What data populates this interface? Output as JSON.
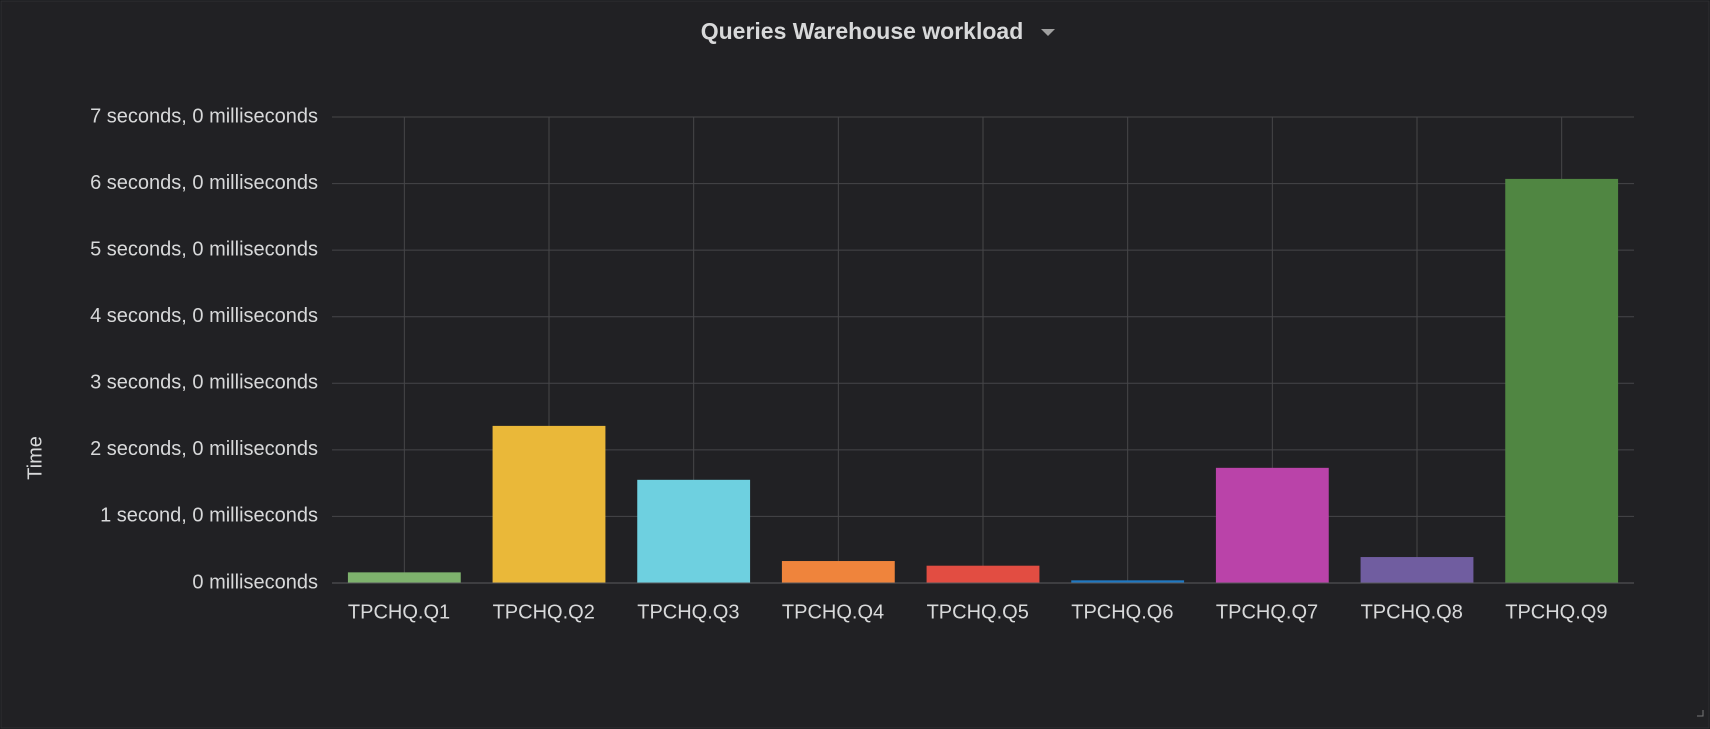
{
  "chart_data": {
    "type": "bar",
    "title": "Queries Warehouse workload",
    "y_label": "Time",
    "categories": [
      "TPCHQ.Q1",
      "TPCHQ.Q2",
      "TPCHQ.Q3",
      "TPCHQ.Q4",
      "TPCHQ.Q5",
      "TPCHQ.Q6",
      "TPCHQ.Q7",
      "TPCHQ.Q8",
      "TPCHQ.Q9"
    ],
    "values": [
      0.16,
      2.36,
      1.55,
      0.33,
      0.26,
      0.04,
      1.73,
      0.39,
      6.07
    ],
    "colors": [
      "#7eb26d",
      "#eab839",
      "#6ed0e0",
      "#ef843c",
      "#e24d42",
      "#1f78c1",
      "#ba43a9",
      "#705da0",
      "#508642"
    ],
    "ylim": [
      0,
      7
    ],
    "yticks": [
      {
        "value": 0,
        "label": "0 milliseconds"
      },
      {
        "value": 1,
        "label": "1 second, 0 milliseconds"
      },
      {
        "value": 2,
        "label": "2 seconds, 0 milliseconds"
      },
      {
        "value": 3,
        "label": "3 seconds, 0 milliseconds"
      },
      {
        "value": 4,
        "label": "4 seconds, 0 milliseconds"
      },
      {
        "value": 5,
        "label": "5 seconds, 0 milliseconds"
      },
      {
        "value": 6,
        "label": "6 seconds, 0 milliseconds"
      },
      {
        "value": 7,
        "label": "7 seconds, 0 milliseconds"
      }
    ],
    "grid": true
  }
}
